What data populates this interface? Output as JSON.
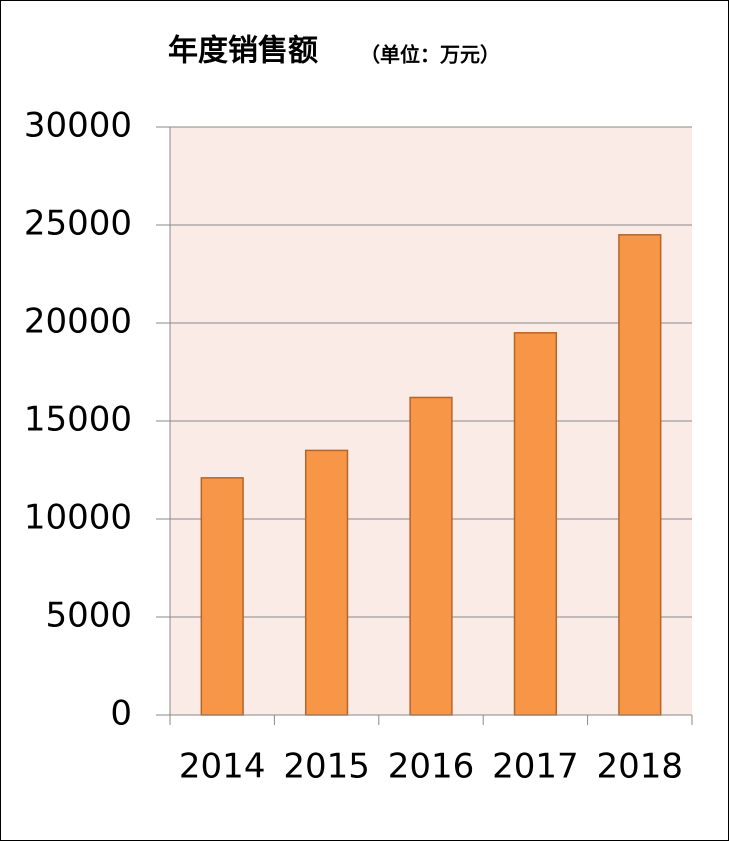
{
  "chart_data": {
    "type": "bar",
    "title": "年度销售额",
    "subtitle": "（单位：万元）",
    "categories": [
      "2014",
      "2015",
      "2016",
      "2017",
      "2018"
    ],
    "values": [
      12100,
      13500,
      16200,
      19500,
      24500
    ],
    "color": "#f79646",
    "ylim": [
      0,
      30000
    ],
    "yticks": [
      0,
      5000,
      10000,
      15000,
      20000,
      25000,
      30000
    ],
    "grid": true
  }
}
